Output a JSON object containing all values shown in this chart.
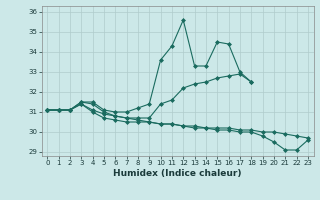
{
  "title": "",
  "xlabel": "Humidex (Indice chaleur)",
  "bg_color": "#cce8e8",
  "line_color": "#1a6b5f",
  "grid_color": "#b0cccc",
  "ylim": [
    28.8,
    36.3
  ],
  "xlim": [
    -0.5,
    23.5
  ],
  "yticks": [
    29,
    30,
    31,
    32,
    33,
    34,
    35,
    36
  ],
  "xticks": [
    0,
    1,
    2,
    3,
    4,
    5,
    6,
    7,
    8,
    9,
    10,
    11,
    12,
    13,
    14,
    15,
    16,
    17,
    18,
    19,
    20,
    21,
    22,
    23
  ],
  "series": [
    {
      "x": [
        0,
        1,
        2,
        3,
        4,
        5,
        6,
        7,
        8,
        9,
        10,
        11,
        12,
        13,
        14,
        15,
        16,
        17,
        18
      ],
      "y": [
        31.1,
        31.1,
        31.1,
        31.5,
        31.5,
        31.1,
        31.0,
        31.0,
        31.2,
        31.4,
        33.6,
        34.3,
        35.6,
        33.3,
        33.3,
        34.5,
        34.4,
        33.0,
        32.5
      ]
    },
    {
      "x": [
        0,
        1,
        2,
        3,
        4,
        5,
        6,
        7,
        8,
        9,
        10,
        11,
        12,
        13,
        14,
        15,
        16,
        17,
        18
      ],
      "y": [
        31.1,
        31.1,
        31.1,
        31.5,
        31.4,
        31.0,
        30.8,
        30.7,
        30.7,
        30.7,
        31.4,
        31.6,
        32.2,
        32.4,
        32.5,
        32.7,
        32.8,
        32.9,
        32.5
      ]
    },
    {
      "x": [
        0,
        1,
        2,
        3,
        4,
        5,
        6,
        7,
        8,
        9,
        10,
        11,
        12,
        13,
        14,
        15,
        16,
        17,
        18,
        19,
        20,
        21,
        22,
        23
      ],
      "y": [
        31.1,
        31.1,
        31.1,
        31.4,
        31.0,
        30.7,
        30.6,
        30.5,
        30.5,
        30.5,
        30.4,
        30.4,
        30.3,
        30.3,
        30.2,
        30.2,
        30.2,
        30.1,
        30.1,
        30.0,
        30.0,
        29.9,
        29.8,
        29.7
      ]
    },
    {
      "x": [
        0,
        1,
        2,
        3,
        4,
        5,
        6,
        7,
        8,
        9,
        10,
        11,
        12,
        13,
        14,
        15,
        16,
        17,
        18,
        19,
        20,
        21,
        22,
        23
      ],
      "y": [
        31.1,
        31.1,
        31.1,
        31.4,
        31.1,
        30.9,
        30.8,
        30.7,
        30.6,
        30.5,
        30.4,
        30.4,
        30.3,
        30.2,
        30.2,
        30.1,
        30.1,
        30.0,
        30.0,
        29.8,
        29.5,
        29.1,
        29.1,
        29.6
      ]
    }
  ]
}
